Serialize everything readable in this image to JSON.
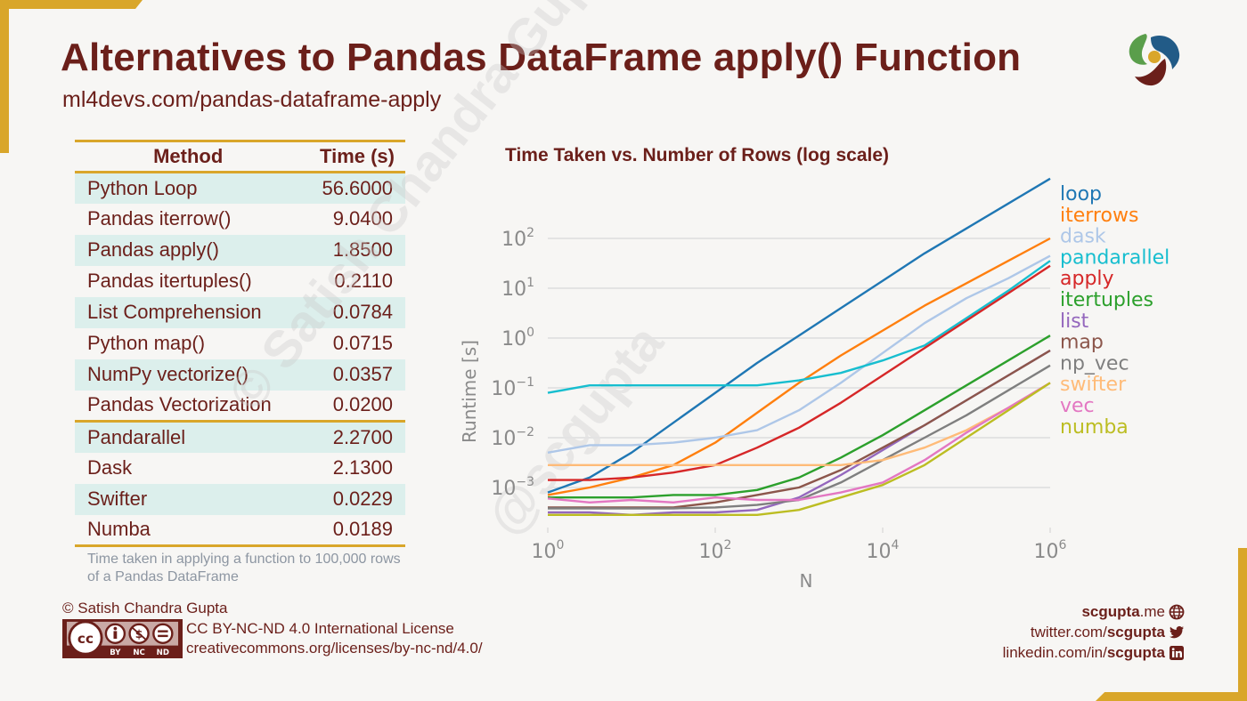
{
  "header": {
    "title": "Alternatives to Pandas DataFrame apply() Function",
    "subtitle": "ml4devs.com/pandas-dataframe-apply",
    "logo_icon": "swirl-logo-icon",
    "logo_colors": [
      "#5a9e4b",
      "#225b87",
      "#6b1f1a",
      "#d9a62a"
    ]
  },
  "colors": {
    "brand": "#6b1f1a",
    "accent": "#d9a62a",
    "row_shade": "#dcefec",
    "note": "#8d96a2"
  },
  "table": {
    "headers": {
      "method": "Method",
      "time": "Time (s)"
    },
    "rows": [
      {
        "method": "Python Loop",
        "time": "56.6000"
      },
      {
        "method": "Pandas iterrow()",
        "time": "9.0400"
      },
      {
        "method": "Pandas apply()",
        "time": "1.8500"
      },
      {
        "method": "Pandas itertuples()",
        "time": "0.2110"
      },
      {
        "method": "List Comprehension",
        "time": "0.0784"
      },
      {
        "method": "Python map()",
        "time": "0.0715"
      },
      {
        "method": "NumPy vectorize()",
        "time": "0.0357"
      },
      {
        "method": "Pandas Vectorization",
        "time": "0.0200"
      },
      {
        "method": "Pandarallel",
        "time": "2.2700"
      },
      {
        "method": "Dask",
        "time": "2.1300"
      },
      {
        "method": "Swifter",
        "time": "0.0229"
      },
      {
        "method": "Numba",
        "time": "0.0189"
      }
    ],
    "note": "Time taken in applying a function to 100,000 rows of a Pandas DataFrame"
  },
  "chart_data": {
    "type": "line",
    "title": "Time Taken vs. Number of Rows (log scale)",
    "xlabel": "N",
    "ylabel": "Runtime [s]",
    "xscale": "log",
    "yscale": "log",
    "xlim": [
      1,
      1000000
    ],
    "ylim": [
      0.00018,
      500
    ],
    "xticks": [
      "10^0",
      "10^2",
      "10^4",
      "10^6"
    ],
    "yticks": [
      "10^2",
      "10^1",
      "10^0",
      "10^-1",
      "10^-2",
      "10^-3"
    ],
    "grid": true,
    "legend_position": "right",
    "x_log10": [
      0,
      0.5,
      1,
      1.5,
      2,
      2.5,
      3,
      3.5,
      4,
      4.5,
      5,
      5.5,
      6
    ],
    "series": [
      {
        "name": "loop",
        "color": "#1f77b4",
        "log10_values": [
          -3.1,
          -2.8,
          -2.3,
          -1.7,
          -1.1,
          -0.5,
          0.05,
          0.6,
          1.15,
          1.7,
          2.2,
          2.7,
          3.2
        ]
      },
      {
        "name": "iterrows",
        "color": "#ff7f0e",
        "log10_values": [
          -3.15,
          -3.0,
          -2.8,
          -2.55,
          -2.1,
          -1.5,
          -0.9,
          -0.35,
          0.15,
          0.65,
          1.1,
          1.55,
          2.0
        ]
      },
      {
        "name": "dask",
        "color": "#aec7e8",
        "log10_values": [
          -2.3,
          -2.15,
          -2.15,
          -2.1,
          -2.0,
          -1.85,
          -1.45,
          -0.9,
          -0.3,
          0.3,
          0.8,
          1.2,
          1.65
        ]
      },
      {
        "name": "pandarallel",
        "color": "#17becf",
        "log10_values": [
          -1.1,
          -0.95,
          -0.95,
          -0.95,
          -0.95,
          -0.95,
          -0.85,
          -0.7,
          -0.45,
          -0.15,
          0.4,
          0.95,
          1.55
        ]
      },
      {
        "name": "apply",
        "color": "#d62728",
        "log10_values": [
          -2.85,
          -2.85,
          -2.8,
          -2.7,
          -2.55,
          -2.2,
          -1.8,
          -1.3,
          -0.75,
          -0.2,
          0.35,
          0.9,
          1.45
        ]
      },
      {
        "name": "itertuples",
        "color": "#2ca02c",
        "log10_values": [
          -3.2,
          -3.2,
          -3.2,
          -3.15,
          -3.15,
          -3.05,
          -2.8,
          -2.4,
          -1.95,
          -1.45,
          -0.95,
          -0.45,
          0.05
        ]
      },
      {
        "name": "list",
        "color": "#9467bd",
        "log10_values": [
          -3.5,
          -3.5,
          -3.55,
          -3.5,
          -3.5,
          -3.45,
          -3.2,
          -2.75,
          -2.25,
          -1.75,
          -1.25,
          -0.75,
          -0.25
        ]
      },
      {
        "name": "map",
        "color": "#8c564b",
        "log10_values": [
          -3.4,
          -3.4,
          -3.4,
          -3.4,
          -3.3,
          -3.15,
          -3.0,
          -2.65,
          -2.2,
          -1.75,
          -1.25,
          -0.75,
          -0.25
        ]
      },
      {
        "name": "np_vec",
        "color": "#7f7f7f",
        "log10_values": [
          -3.42,
          -3.42,
          -3.42,
          -3.42,
          -3.4,
          -3.35,
          -3.25,
          -2.9,
          -2.45,
          -2.0,
          -1.55,
          -1.05,
          -0.55
        ]
      },
      {
        "name": "swifter",
        "color": "#ffbb78",
        "log10_values": [
          -2.55,
          -2.55,
          -2.55,
          -2.55,
          -2.55,
          -2.55,
          -2.55,
          -2.55,
          -2.45,
          -2.2,
          -1.85,
          -1.4,
          -0.9
        ]
      },
      {
        "name": "vec",
        "color": "#e377c2",
        "log10_values": [
          -3.22,
          -3.3,
          -3.25,
          -3.3,
          -3.2,
          -3.25,
          -3.25,
          -3.1,
          -2.9,
          -2.45,
          -1.9,
          -1.4,
          -0.9
        ]
      },
      {
        "name": "numba",
        "color": "#bcbd22",
        "log10_values": [
          -3.55,
          -3.55,
          -3.55,
          -3.55,
          -3.55,
          -3.55,
          -3.45,
          -3.2,
          -2.95,
          -2.55,
          -2.0,
          -1.45,
          -0.9
        ]
      }
    ],
    "watermark": [
      "© Satish Chandra Gupta",
      "@scgupta"
    ]
  },
  "footer": {
    "copyright": "© Satish Chandra Gupta",
    "license_badge": {
      "icons": [
        "cc-icon",
        "by-icon",
        "nc-icon",
        "nd-icon"
      ],
      "labels": [
        "BY",
        "NC",
        "ND"
      ]
    },
    "license_name": "CC BY-NC-ND 4.0 International License",
    "license_url": "creativecommons.org/licenses/by-nc-nd/4.0/",
    "links": [
      {
        "prefix": "",
        "bold": "scgupta",
        "suffix": ".me",
        "icon": "globe-icon"
      },
      {
        "prefix": "twitter.com/",
        "bold": "scgupta",
        "suffix": "",
        "icon": "twitter-icon"
      },
      {
        "prefix": "linkedin.com/in/",
        "bold": "scgupta",
        "suffix": "",
        "icon": "linkedin-icon"
      }
    ]
  }
}
